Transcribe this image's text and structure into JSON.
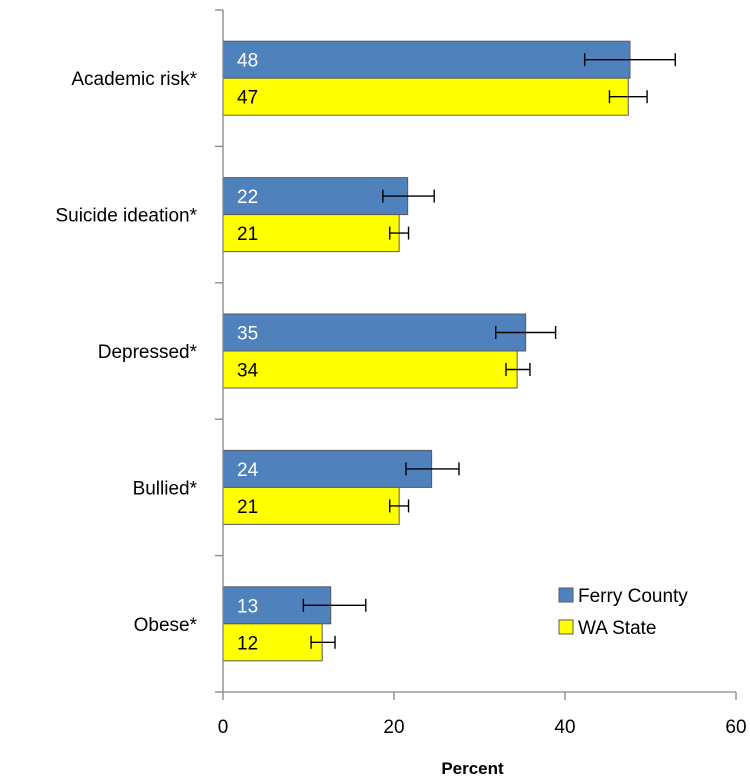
{
  "chart_data": {
    "type": "bar",
    "orientation": "horizontal",
    "categories": [
      "Academic risk*",
      "Suicide ideation*",
      "Depressed*",
      "Bullied*",
      "Obese*"
    ],
    "series": [
      {
        "name": "Ferry County",
        "color": "#4F81BD",
        "label_color": "#FFFFFF",
        "values": [
          47.6,
          21.6,
          35.4,
          24.4,
          12.6
        ],
        "labels": [
          "48",
          "22",
          "35",
          "24",
          "13"
        ],
        "error_low": [
          42.3,
          18.7,
          31.9,
          21.4,
          9.4
        ],
        "error_high": [
          52.9,
          24.7,
          38.9,
          27.6,
          16.7
        ]
      },
      {
        "name": "WA State",
        "color": "#FFFF00",
        "label_color": "#000000",
        "values": [
          47.4,
          20.6,
          34.4,
          20.6,
          11.6
        ],
        "labels": [
          "47",
          "21",
          "34",
          "21",
          "12"
        ],
        "error_low": [
          45.2,
          19.5,
          33.1,
          19.5,
          10.3
        ],
        "error_high": [
          49.6,
          21.7,
          35.9,
          21.7,
          13.1
        ]
      }
    ],
    "xlabel": "Percent",
    "xlim": [
      0,
      60
    ],
    "xticks": [
      "0",
      "20",
      "40",
      "60"
    ],
    "grid": false,
    "legend_position": "bottom-right"
  }
}
